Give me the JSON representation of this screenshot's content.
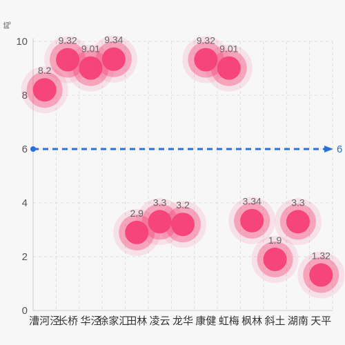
{
  "chart_data": {
    "type": "scatter",
    "title": "",
    "xlabel": "",
    "ylabel": "",
    "y_unit": "吨",
    "categories": [
      "漕河泾",
      "长桥",
      "华泾",
      "徐家汇",
      "田林",
      "凌云",
      "龙华",
      "康健",
      "虹梅",
      "枫林",
      "斜土",
      "湖南",
      "天平"
    ],
    "series": [
      {
        "points": [
          {
            "x": "漕河泾",
            "y": 8.2
          },
          {
            "x": "长桥",
            "y": 9.32
          },
          {
            "x": "华泾",
            "y": 9.01
          },
          {
            "x": "徐家汇",
            "y": 9.34
          },
          {
            "x": "田林",
            "y": 2.9
          },
          {
            "x": "凌云",
            "y": 3.3
          },
          {
            "x": "龙华",
            "y": 3.2
          },
          {
            "x": "康健",
            "y": 9.32
          },
          {
            "x": "虹梅",
            "y": 9.01
          },
          {
            "x": "枫林",
            "y": 3.34
          },
          {
            "x": "斜土",
            "y": 1.9
          },
          {
            "x": "湖南",
            "y": 3.3
          },
          {
            "x": "天平",
            "y": 1.32
          }
        ]
      }
    ],
    "ylim": [
      0,
      10
    ],
    "yticks": [
      0,
      2,
      4,
      6,
      8,
      10
    ],
    "reference_line": {
      "value": 6,
      "label": "6"
    },
    "grid": true,
    "colors": {
      "point": "#f5457a",
      "reference": "#2a6fdb",
      "grid": "#dddddd",
      "axis": "#cccccc"
    }
  }
}
